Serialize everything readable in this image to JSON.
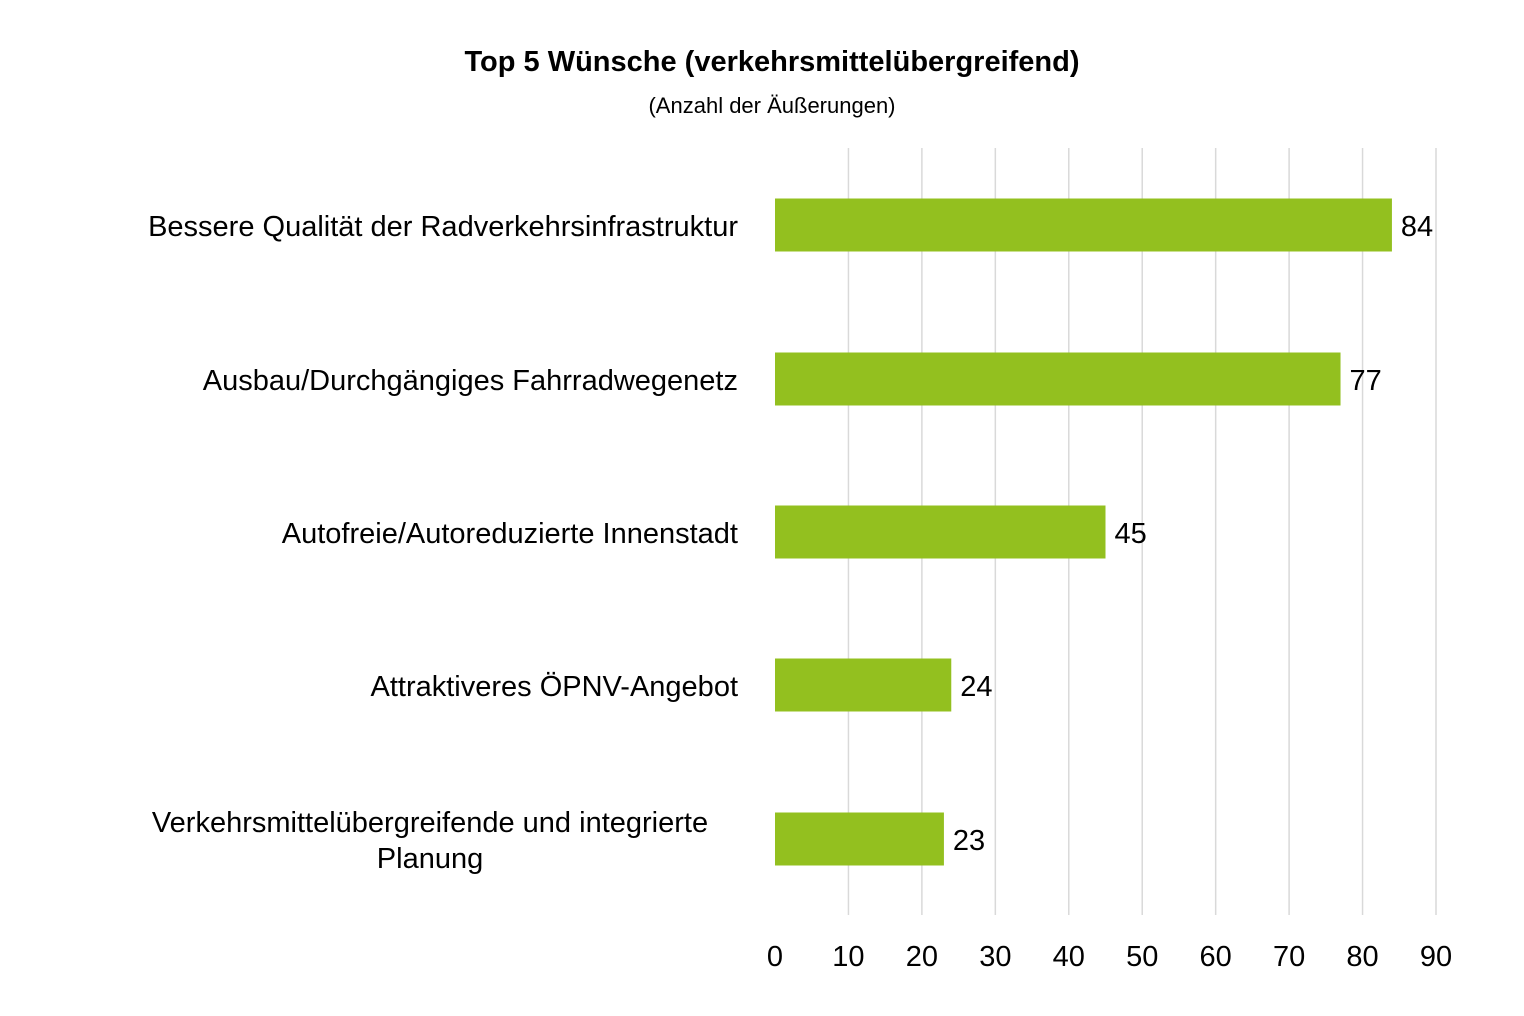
{
  "chart_data": {
    "type": "bar",
    "orientation": "horizontal",
    "title": "Top 5 Wünsche (verkehrsmittelübergreifend)",
    "subtitle": "(Anzahl der Äußerungen)",
    "categories": [
      [
        "Bessere Qualität der Radverkehrsinfrastruktur"
      ],
      [
        "Ausbau/Durchgängiges Fahrradwegenetz"
      ],
      [
        "Autofreie/Autoreduzierte Innenstadt"
      ],
      [
        "Attraktiveres ÖPNV-Angebot"
      ],
      [
        "Verkehrsmittelübergreifende und integrierte",
        "Planung"
      ]
    ],
    "values": [
      84,
      77,
      45,
      24,
      23
    ],
    "data_labels": [
      "84",
      "77",
      "45",
      "24",
      "23"
    ],
    "xlim": [
      0,
      90
    ],
    "x_ticks": [
      "0",
      "10",
      "20",
      "30",
      "40",
      "50",
      "60",
      "70",
      "80",
      "90"
    ],
    "xlabel": "",
    "ylabel": "",
    "grid": "vertical",
    "legend": "none",
    "bar_color": "#93c01f",
    "gridline_color": "#d9d9d9"
  }
}
